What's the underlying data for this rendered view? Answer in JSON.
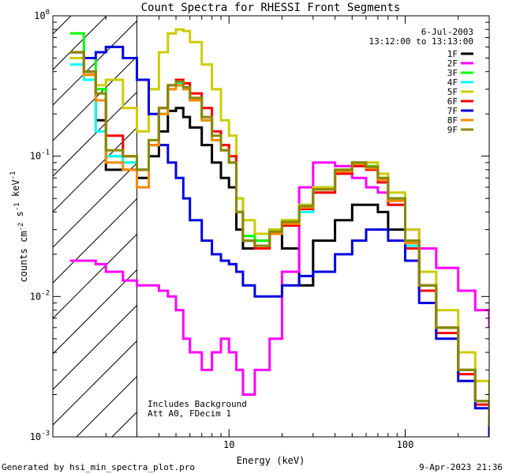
{
  "chart_data": {
    "type": "line",
    "title": "Count Spectra for RHESSI Front Segments",
    "xlabel": "Energy (keV)",
    "ylabel": "counts cm-2 s-1 keV-1",
    "xscale": "log",
    "yscale": "log",
    "xlim": [
      1.0,
      300.0
    ],
    "ylim": [
      0.001,
      1.0
    ],
    "x_ticks": [
      "10",
      "100"
    ],
    "y_ticks": [
      "10-3",
      "10-2",
      "10-1",
      "100"
    ],
    "date": "6-Jul-2003",
    "time_range": "13:12:00 to 13:13:00",
    "note_line1": "Includes Background",
    "note_line2": "Att A0, FDecim 1",
    "hatch_region_kev": [
      1.0,
      3.0
    ],
    "footer_left": "Generated by hsi_min_spectra_plot.pro",
    "footer_right": "9-Apr-2023 21:36",
    "x": [
      1.25,
      1.5,
      1.75,
      2.0,
      2.5,
      3.0,
      3.5,
      4.0,
      4.5,
      5.0,
      5.5,
      6.0,
      7.0,
      8.0,
      9.0,
      10.0,
      11.0,
      12.0,
      14.0,
      17.0,
      20.0,
      25.0,
      30.0,
      40.0,
      50.0,
      60.0,
      70.0,
      80.0,
      100.0,
      120.0,
      150.0,
      200.0,
      250.0,
      300.0
    ],
    "series": [
      {
        "name": "1F",
        "color": "#000000",
        "values": [
          0.5,
          0.4,
          0.18,
          0.08,
          0.08,
          0.07,
          0.1,
          0.15,
          0.21,
          0.22,
          0.19,
          0.16,
          0.12,
          0.09,
          0.07,
          0.06,
          0.03,
          0.022,
          0.025,
          0.03,
          0.022,
          0.012,
          0.025,
          0.035,
          0.045,
          0.045,
          0.04,
          0.03,
          0.022,
          0.012,
          0.006,
          0.003,
          0.0018,
          0.0012
        ]
      },
      {
        "name": "2F",
        "color": "#ff00ff",
        "values": [
          0.018,
          0.018,
          0.017,
          0.015,
          0.013,
          0.012,
          0.012,
          0.011,
          0.01,
          0.008,
          0.005,
          0.004,
          0.003,
          0.004,
          0.005,
          0.004,
          0.003,
          0.002,
          0.003,
          0.005,
          0.015,
          0.06,
          0.09,
          0.085,
          0.07,
          0.06,
          0.055,
          0.045,
          0.03,
          0.022,
          0.016,
          0.011,
          0.008,
          0.006
        ]
      },
      {
        "name": "3F",
        "color": "#00ff00",
        "values": [
          0.75,
          0.5,
          0.3,
          0.1,
          0.09,
          0.08,
          0.12,
          0.2,
          0.3,
          0.32,
          0.3,
          0.25,
          0.18,
          0.13,
          0.12,
          0.1,
          0.05,
          0.027,
          0.025,
          0.03,
          0.035,
          0.045,
          0.06,
          0.08,
          0.09,
          0.085,
          0.07,
          0.05,
          0.025,
          0.012,
          0.006,
          0.003,
          0.0018,
          0.0012
        ]
      },
      {
        "name": "4F",
        "color": "#00ffff",
        "values": [
          0.45,
          0.35,
          0.15,
          0.1,
          0.09,
          0.08,
          0.12,
          0.2,
          0.3,
          0.33,
          0.3,
          0.25,
          0.18,
          0.13,
          0.11,
          0.09,
          0.04,
          0.025,
          0.022,
          0.028,
          0.032,
          0.04,
          0.055,
          0.075,
          0.085,
          0.08,
          0.065,
          0.045,
          0.023,
          0.011,
          0.0055,
          0.0028,
          0.0017,
          0.0011
        ]
      },
      {
        "name": "5F",
        "color": "#cccc00",
        "values": [
          0.5,
          0.38,
          0.32,
          0.35,
          0.22,
          0.15,
          0.3,
          0.55,
          0.75,
          0.8,
          0.78,
          0.65,
          0.45,
          0.3,
          0.18,
          0.14,
          0.05,
          0.035,
          0.028,
          0.03,
          0.035,
          0.045,
          0.06,
          0.08,
          0.09,
          0.09,
          0.075,
          0.055,
          0.03,
          0.015,
          0.008,
          0.004,
          0.0025,
          0.0015
        ]
      },
      {
        "name": "6F",
        "color": "#ff0000",
        "values": [
          0.55,
          0.4,
          0.25,
          0.14,
          0.1,
          0.08,
          0.12,
          0.22,
          0.32,
          0.35,
          0.33,
          0.28,
          0.22,
          0.15,
          0.12,
          0.1,
          0.04,
          0.025,
          0.022,
          0.028,
          0.032,
          0.042,
          0.055,
          0.075,
          0.085,
          0.08,
          0.065,
          0.045,
          0.022,
          0.011,
          0.0055,
          0.0028,
          0.0017,
          0.0011
        ]
      },
      {
        "name": "7F",
        "color": "#0000dd",
        "values": [
          0.55,
          0.5,
          0.55,
          0.6,
          0.5,
          0.35,
          0.2,
          0.12,
          0.09,
          0.07,
          0.05,
          0.035,
          0.025,
          0.02,
          0.018,
          0.017,
          0.015,
          0.012,
          0.01,
          0.01,
          0.012,
          0.014,
          0.015,
          0.02,
          0.025,
          0.03,
          0.03,
          0.025,
          0.018,
          0.009,
          0.005,
          0.0025,
          0.0016,
          0.001
        ]
      },
      {
        "name": "8F",
        "color": "#ff8800",
        "values": [
          0.55,
          0.38,
          0.25,
          0.09,
          0.08,
          0.06,
          0.12,
          0.2,
          0.3,
          0.32,
          0.3,
          0.25,
          0.18,
          0.13,
          0.11,
          0.09,
          0.04,
          0.025,
          0.023,
          0.028,
          0.033,
          0.043,
          0.058,
          0.078,
          0.088,
          0.082,
          0.068,
          0.048,
          0.024,
          0.012,
          0.006,
          0.003,
          0.0018,
          0.0012
        ]
      },
      {
        "name": "9F",
        "color": "#888800",
        "values": [
          0.55,
          0.4,
          0.28,
          0.11,
          0.1,
          0.08,
          0.13,
          0.22,
          0.32,
          0.34,
          0.31,
          0.26,
          0.19,
          0.14,
          0.11,
          0.09,
          0.04,
          0.025,
          0.023,
          0.029,
          0.034,
          0.044,
          0.058,
          0.08,
          0.09,
          0.084,
          0.07,
          0.05,
          0.025,
          0.012,
          0.006,
          0.003,
          0.0018,
          0.0012
        ]
      }
    ]
  }
}
